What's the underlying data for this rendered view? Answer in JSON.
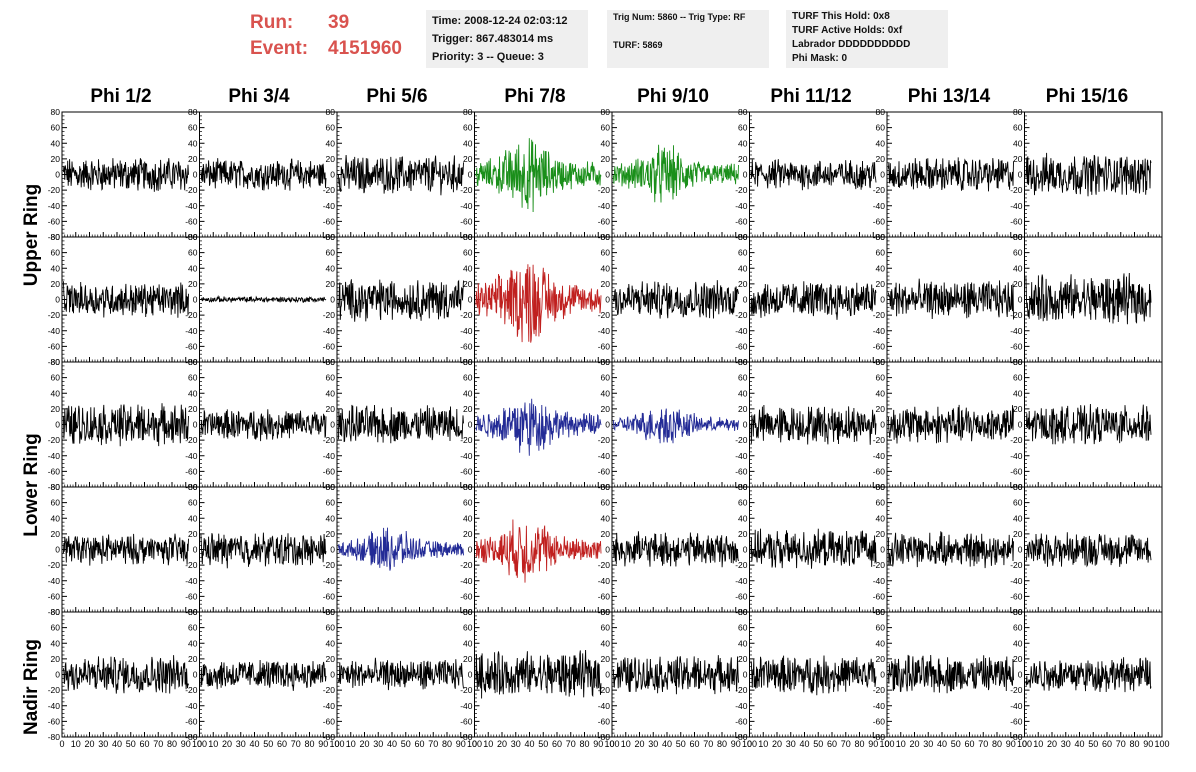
{
  "header": {
    "run_label": "Run:",
    "run_value": "39",
    "event_label": "Event:",
    "event_value": "4151960"
  },
  "info1": {
    "time": "Time: 2008-12-24 02:03:12",
    "trigger": "Trigger: 867.483014 ms",
    "priority": "Priority: 3 -- Queue: 3"
  },
  "info2": {
    "trig": "Trig Num: 5860 -- Trig Type: RF",
    "turf": "TURF: 5869"
  },
  "info3": {
    "hold": "TURF This Hold: 0x8",
    "active": "TURF Active Holds: 0xf",
    "labrador": "Labrador DDDDDDDDDD",
    "phimask": "Phi Mask: 0"
  },
  "columns": [
    "Phi 1/2",
    "Phi 3/4",
    "Phi 5/6",
    "Phi 7/8",
    "Phi 9/10",
    "Phi 11/12",
    "Phi 13/14",
    "Phi 15/16"
  ],
  "ring_labels": [
    "Upper Ring",
    "Lower Ring",
    "Nadir Ring"
  ],
  "chart_data": {
    "type": "line",
    "xlim": [
      0,
      100
    ],
    "ylim": [
      -80,
      80
    ],
    "y_ticks": [
      -80,
      -60,
      -40,
      -20,
      0,
      20,
      40,
      60,
      80
    ],
    "x_ticks": [
      0,
      10,
      20,
      30,
      40,
      50,
      60,
      70,
      80,
      90,
      100
    ],
    "x_tick_labels": [
      "0",
      "10",
      "20",
      "30",
      "40",
      "50",
      "60",
      "70",
      "80",
      "90",
      "100"
    ],
    "color_key": {
      "k": "#000000",
      "g": "#1a8f1a",
      "r": "#c0201f",
      "b": "#232b96"
    },
    "panel_colors": [
      [
        "k",
        "k",
        "k",
        "g",
        "g",
        "k",
        "k",
        "k"
      ],
      [
        "k",
        "k",
        "k",
        "r",
        "k",
        "k",
        "k",
        "k"
      ],
      [
        "k",
        "k",
        "k",
        "b",
        "b",
        "k",
        "k",
        "k"
      ],
      [
        "k",
        "k",
        "b",
        "r",
        "k",
        "k",
        "k",
        "k"
      ],
      [
        "k",
        "k",
        "k",
        "k",
        "k",
        "k",
        "k",
        "k"
      ]
    ],
    "panel_amplitude": [
      [
        18,
        16,
        20,
        40,
        32,
        16,
        18,
        22
      ],
      [
        18,
        3,
        22,
        48,
        20,
        20,
        20,
        26
      ],
      [
        22,
        16,
        20,
        34,
        22,
        20,
        20,
        20
      ],
      [
        16,
        18,
        24,
        36,
        18,
        20,
        18,
        18
      ],
      [
        20,
        16,
        16,
        24,
        20,
        20,
        20,
        18
      ]
    ]
  }
}
